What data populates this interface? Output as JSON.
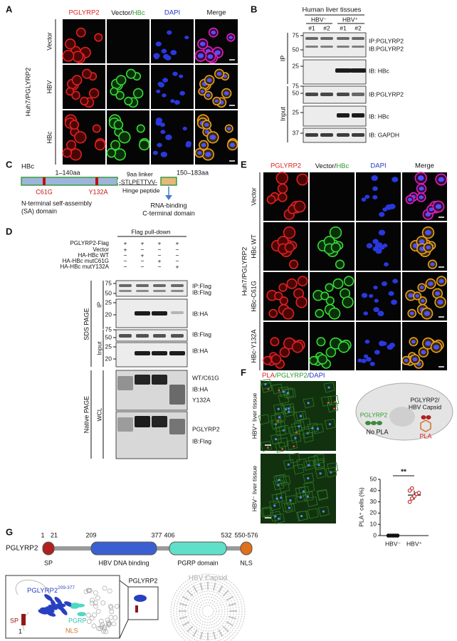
{
  "A": {
    "label": "A",
    "headers": [
      "PGLYRP2",
      "Vector/",
      "HBc",
      "DAPI",
      "Merge"
    ],
    "rows": [
      "Vector",
      "HBV",
      "HBc"
    ],
    "cell_line": "Huh7/PGLYRP2"
  },
  "B": {
    "label": "B",
    "title": "Human liver tissues",
    "groups": [
      "HBV⁻",
      "HBV⁺"
    ],
    "samples": [
      "#1",
      "#2",
      "#1",
      "#2"
    ],
    "sections": [
      "IP",
      "Input"
    ],
    "blots": [
      {
        "markers": [
          75,
          50
        ],
        "labels": [
          "IP:PGLYRP2",
          "IB:PGLYRP2"
        ]
      },
      {
        "markers": [
          25
        ],
        "labels": [
          "IB: HBc"
        ]
      },
      {
        "markers": [
          75,
          50
        ],
        "labels": [
          "IB:PGLYRP2"
        ]
      },
      {
        "markers": [
          25
        ],
        "labels": [
          "IB: HBc"
        ]
      },
      {
        "markers": [
          37
        ],
        "labels": [
          "IB: GAPDH"
        ]
      }
    ]
  },
  "C": {
    "label": "C",
    "protein": "HBc",
    "ranges": [
      "1–140aa",
      "9aa linker",
      "150–183aa"
    ],
    "mutations": [
      "C61G",
      "Y132A"
    ],
    "linker_sequence": "-STLPETTVV-",
    "linker_name": "Hinge peptide",
    "n_domain": [
      "N-terminal self-assembly",
      "(SA) domain"
    ],
    "c_domain": [
      "RNA-binding",
      "C-terminal domain"
    ]
  },
  "D": {
    "label": "D",
    "title": "Flag pull-down",
    "conditions": [
      "PGLYRP2-Flag",
      "Vector",
      "HA-HBc WT",
      "HA-HBc mutC61G",
      "HA-HBc mutY132A"
    ],
    "signs": [
      [
        "+",
        "+",
        "+",
        "+"
      ],
      [
        "+",
        "−",
        "−",
        "−"
      ],
      [
        "−",
        "+",
        "−",
        "−"
      ],
      [
        "−",
        "−",
        "+",
        "−"
      ],
      [
        "−",
        "−",
        "−",
        "+"
      ]
    ],
    "gels": [
      "SDS PAGE",
      "Native PAGE"
    ],
    "sections": [
      "IP",
      "Input",
      "WCL"
    ],
    "blots": [
      {
        "markers": [
          75,
          50
        ],
        "labels": [
          "IP:Flag",
          "IB:Flag"
        ]
      },
      {
        "markers": [
          25,
          20
        ],
        "labels": [
          "IB:HA"
        ]
      },
      {
        "markers": [
          75,
          50
        ],
        "labels": [
          "IB:Flag"
        ]
      },
      {
        "markers": [
          25,
          20
        ],
        "labels": [
          "IB:HA"
        ]
      },
      {
        "markers": [],
        "labels": [
          "WT/C61G",
          "IB:HA",
          "Y132A"
        ]
      },
      {
        "markers": [],
        "labels": [
          "PGLYRP2",
          "IB:Flag"
        ]
      }
    ]
  },
  "E": {
    "label": "E",
    "headers": [
      "PGLYRP2",
      "Vector/",
      "HBc",
      "DAPI",
      "Merge"
    ],
    "rows": [
      "Vector",
      "HBc WT",
      "HBc-C61G",
      "HBc-Y132A"
    ],
    "cell_line": "Huh7/PGLYRP2"
  },
  "F": {
    "label": "F",
    "stain": [
      "PLA",
      "/PGLYRP2",
      "/DAPI"
    ],
    "rows": [
      "HBV⁺ liver tissue",
      "HBV⁻ liver tissue"
    ],
    "diagram": [
      "PGLYRP2/",
      "HBV Capsid",
      "PGLYRP2",
      "No PLA",
      "PLA"
    ],
    "plot": {
      "y_label": "PLA⁺ cells (%)",
      "ylim": [
        0,
        50
      ],
      "yticks": [
        0,
        10,
        20,
        30,
        40,
        50
      ],
      "categories": [
        "HBV⁻",
        "HBV⁺"
      ],
      "values": [
        [
          0,
          0,
          0,
          0,
          0
        ],
        [
          30,
          33,
          35,
          37,
          38,
          40,
          42
        ]
      ],
      "mean": [
        0,
        36
      ],
      "sd": [
        0,
        4
      ],
      "significance": "**"
    }
  },
  "G": {
    "label": "G",
    "protein": "PGLYRP2",
    "positions": [
      "1",
      "21",
      "209",
      "377",
      "406",
      "532",
      "550-576"
    ],
    "domains": [
      "SP",
      "HBV DNA binding",
      "PGRP domain",
      "NLS"
    ],
    "structure": {
      "name": "PGLYRP2",
      "range": "209-377",
      "labels": [
        "SP",
        "1",
        "PGRP",
        "NLS"
      ],
      "inset": "PGLYRP2",
      "capsid": "HBV Capsid"
    }
  }
}
